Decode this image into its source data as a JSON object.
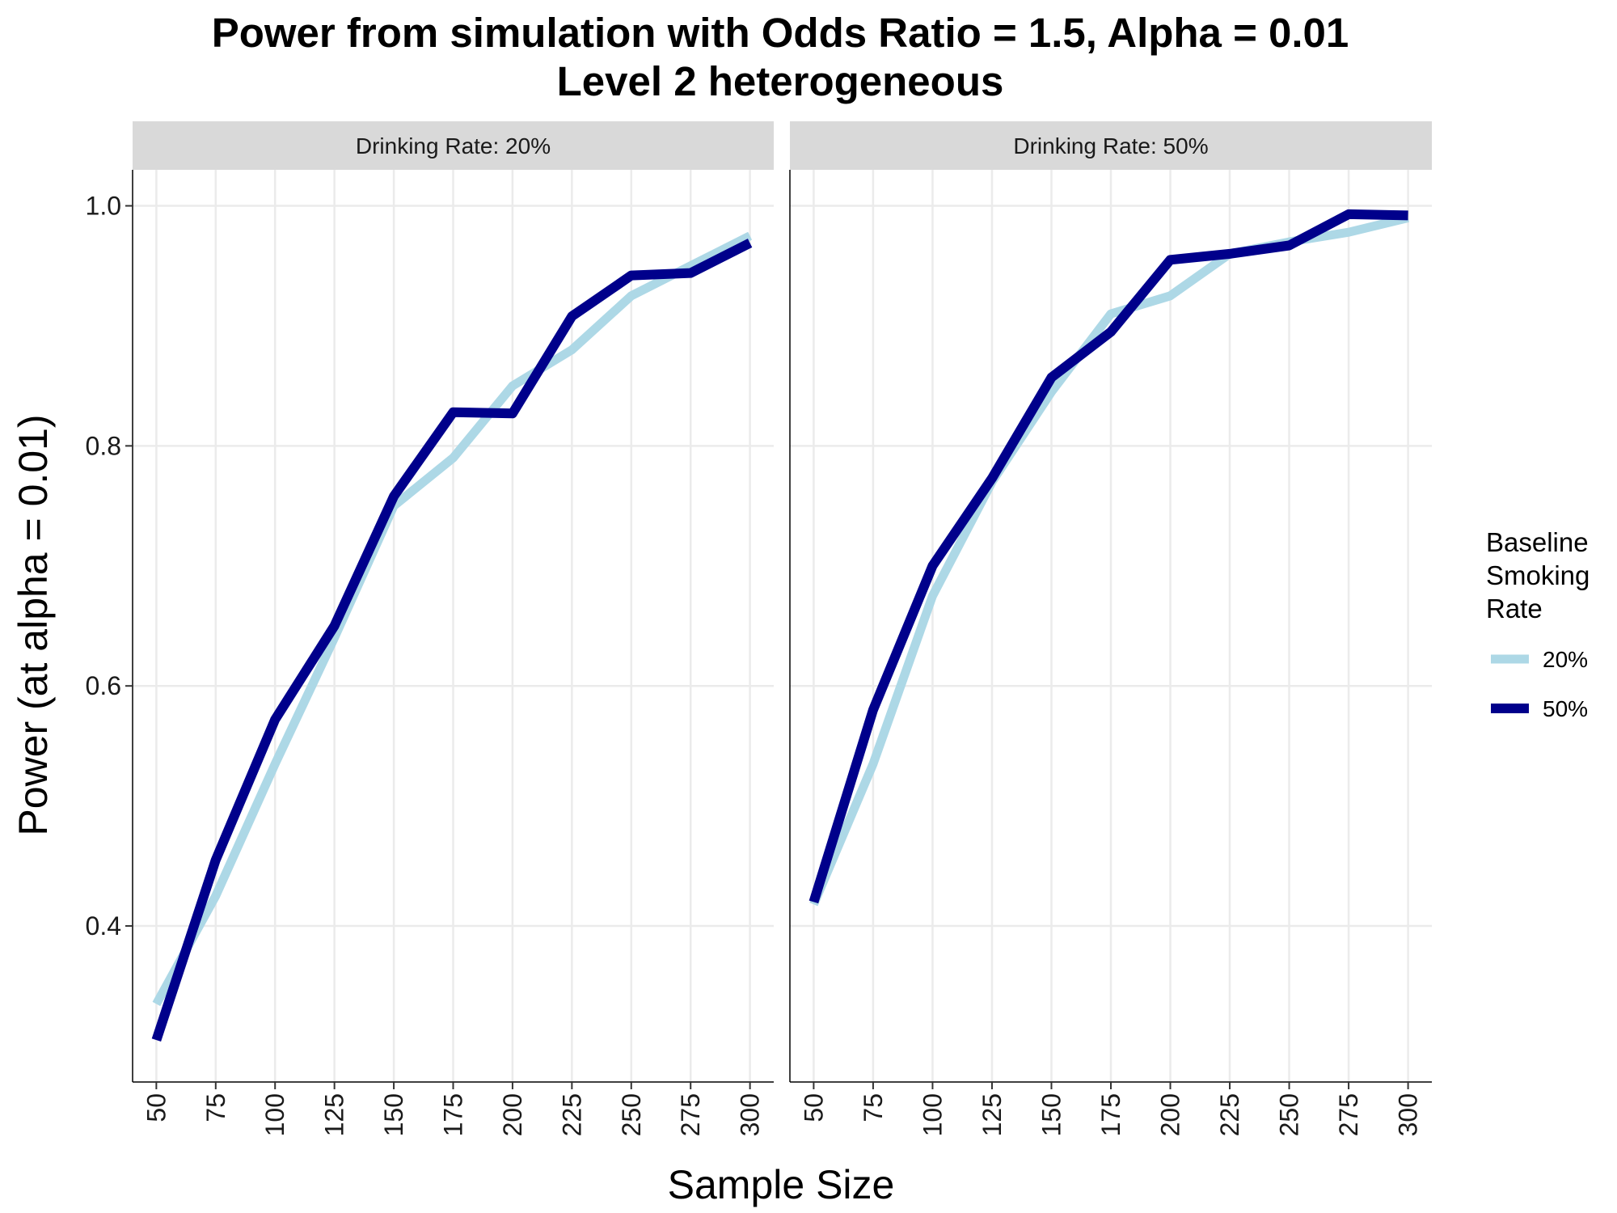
{
  "chart_data": {
    "type": "line",
    "title": "Power from simulation with Odds Ratio = 1.5, Alpha = 0.01",
    "subtitle": "Level 2 heterogeneous",
    "xlabel": "Sample Size",
    "ylabel": "Power (at alpha = 0.01)",
    "x": [
      50,
      75,
      100,
      125,
      150,
      175,
      200,
      225,
      250,
      275,
      300
    ],
    "x_tick_labels": [
      "50",
      "75",
      "100",
      "125",
      "150",
      "175",
      "200",
      "225",
      "250",
      "275",
      "300"
    ],
    "y_ticks": [
      0.4,
      0.6,
      0.8,
      1.0
    ],
    "y_tick_labels": [
      "0.4",
      "0.6",
      "0.8",
      "1.0"
    ],
    "ylim": [
      0.27,
      1.03
    ],
    "xlim": [
      40,
      310
    ],
    "grid": true,
    "legend": {
      "title_lines": [
        "Baseline",
        "Smoking",
        "Rate"
      ],
      "position": "right",
      "entries": [
        "20%",
        "50%"
      ]
    },
    "colors": {
      "20%": "#add8e6",
      "50%": "#00008b"
    },
    "panels": [
      {
        "strip": "Drinking Rate: 20%",
        "series": [
          {
            "name": "20%",
            "values": [
              0.335,
              0.425,
              0.535,
              0.64,
              0.75,
              0.79,
              0.85,
              0.88,
              0.925,
              0.95,
              0.975
            ]
          },
          {
            "name": "50%",
            "values": [
              0.305,
              0.455,
              0.572,
              0.65,
              0.758,
              0.828,
              0.827,
              0.908,
              0.942,
              0.944,
              0.969
            ]
          }
        ]
      },
      {
        "strip": "Drinking Rate: 50%",
        "series": [
          {
            "name": "20%",
            "values": [
              0.418,
              0.535,
              0.675,
              0.77,
              0.845,
              0.91,
              0.925,
              0.96,
              0.97,
              0.978,
              0.99
            ]
          },
          {
            "name": "50%",
            "values": [
              0.42,
              0.58,
              0.7,
              0.773,
              0.857,
              0.895,
              0.955,
              0.96,
              0.967,
              0.993,
              0.992
            ]
          }
        ]
      }
    ]
  }
}
